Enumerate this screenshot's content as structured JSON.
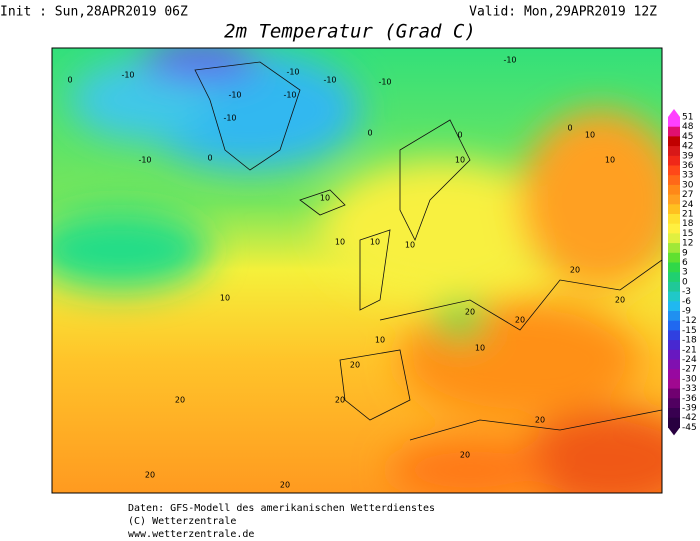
{
  "header": {
    "init": "Init : Sun,28APR2019 06Z",
    "valid": "Valid: Mon,29APR2019 12Z",
    "title": "2m Temperatur (Grad C)"
  },
  "colorbar": {
    "labels": [
      51,
      48,
      45,
      42,
      39,
      36,
      33,
      30,
      27,
      24,
      21,
      18,
      15,
      12,
      9,
      6,
      3,
      0,
      -3,
      -6,
      -9,
      -12,
      -15,
      -18,
      -21,
      -24,
      -27,
      -30,
      -33,
      -36,
      -39,
      -42,
      -45
    ]
  },
  "map_labels": [
    "-10",
    "-10",
    "-10",
    "-10",
    "-10",
    "-10",
    "-10",
    "-10",
    "-10",
    "0",
    "0",
    "0",
    "0",
    "0",
    "10",
    "10",
    "10",
    "10",
    "10",
    "10",
    "10",
    "10",
    "10",
    "10",
    "20",
    "20",
    "20",
    "20",
    "20",
    "20",
    "20",
    "20",
    "20",
    "20",
    "20"
  ],
  "footer": {
    "line1": "Daten: GFS-Modell des amerikanischen Wetterdienstes",
    "line2": "(C) Wetterzentrale",
    "line3": "www.wetterzentrale.de"
  }
}
